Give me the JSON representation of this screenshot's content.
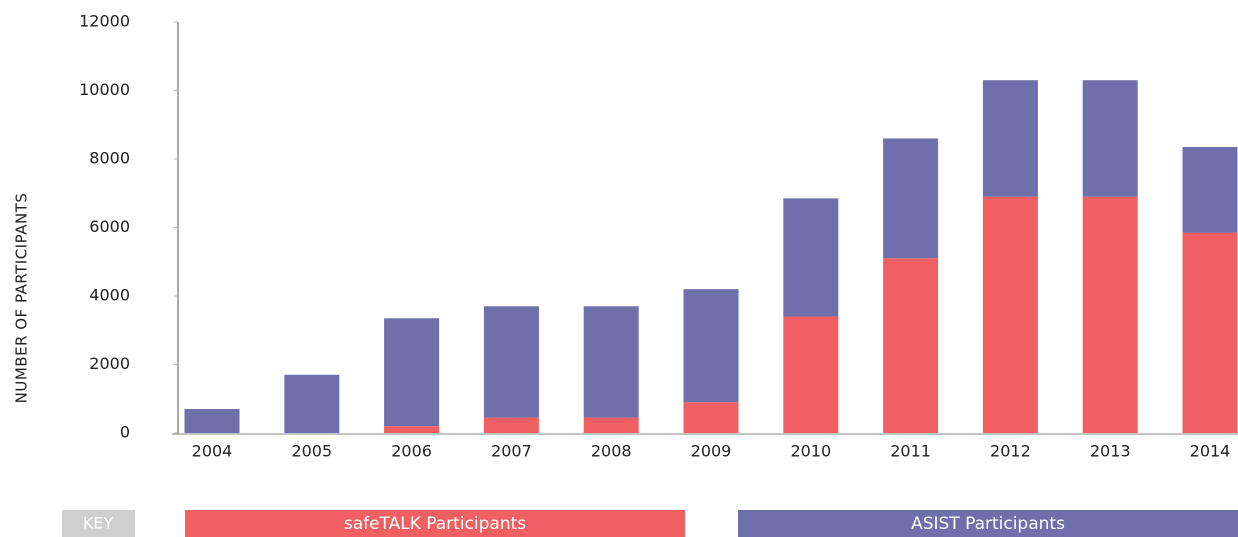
{
  "chart_data": {
    "type": "stacked_bar",
    "y_label": "NUMBER OF PARTICIPANTS",
    "legend_title": "KEY",
    "categories": [
      "2004",
      "2005",
      "2006",
      "2007",
      "2008",
      "2009",
      "2010",
      "2011",
      "2012",
      "2013",
      "2014"
    ],
    "series": [
      {
        "name": "safeTALK Participants",
        "color": "#f06062",
        "values": [
          0,
          0,
          200,
          450,
          450,
          900,
          3400,
          5100,
          6900,
          6900,
          5850
        ]
      },
      {
        "name": "ASIST Participants",
        "color": "#6f6fab",
        "values": [
          700,
          1700,
          3150,
          3250,
          3250,
          3300,
          3450,
          3500,
          3400,
          3400,
          2500
        ]
      }
    ],
    "ylim": [
      0,
      12000
    ],
    "yticks": [
      0,
      2000,
      4000,
      6000,
      8000,
      10000,
      12000
    ],
    "grid": false
  }
}
